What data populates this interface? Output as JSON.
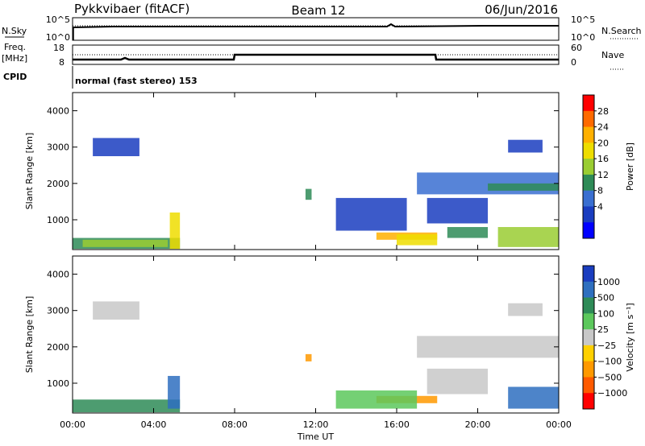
{
  "header": {
    "station": "Pykkvibaer (fitACF)",
    "beam": "Beam 12",
    "date": "06/Jun/2016"
  },
  "status_panels": {
    "nsky_label": "N.Sky",
    "nsearch_label": "N.Search",
    "freq_label_1": "Freq.",
    "freq_label_2": "[MHz]",
    "nave_label": "Nave",
    "cpid_label": "CPID",
    "cpid_text": "normal (fast stereo) 153",
    "noise_left_ticks": [
      "10^5",
      "10^0"
    ],
    "noise_right_ticks": [
      "10^5",
      "10^0"
    ],
    "freq_left_ticks": [
      "18",
      "8"
    ],
    "nave_right_ticks": [
      "60",
      "0"
    ]
  },
  "chart_data": [
    {
      "type": "heatmap",
      "name": "power",
      "ylabel": "Slant Range [km]",
      "xlabel": "",
      "y_ticks": [
        "4000",
        "3000",
        "2000",
        "1000"
      ],
      "ylim": [
        180,
        4500
      ],
      "colorbar_label": "Power [dB]",
      "colorbar_ticks": [
        "28",
        "24",
        "20",
        "16",
        "12",
        "8",
        "4"
      ],
      "colorbar_colors": [
        "#ff0000",
        "#ff6a00",
        "#ffb000",
        "#eedd00",
        "#9acd32",
        "#2e8b57",
        "#3a6fd1",
        "#1a3dbf",
        "#0000ff"
      ],
      "x_range_hours": [
        0,
        24
      ],
      "echo_regions": [
        {
          "t0": 0.0,
          "t1": 5.3,
          "r0": 200,
          "r1": 500,
          "level": 3
        },
        {
          "t0": 0.5,
          "t1": 4.7,
          "r0": 250,
          "r1": 450,
          "level": 4
        },
        {
          "t0": 4.8,
          "t1": 5.3,
          "r0": 200,
          "r1": 1200,
          "level": 5
        },
        {
          "t0": 1.0,
          "t1": 3.3,
          "r0": 2750,
          "r1": 3250,
          "level": 1
        },
        {
          "t0": 11.5,
          "t1": 11.8,
          "r0": 1550,
          "r1": 1850,
          "level": 3
        },
        {
          "t0": 13.0,
          "t1": 16.5,
          "r0": 700,
          "r1": 1600,
          "level": 1
        },
        {
          "t0": 15.0,
          "t1": 18.0,
          "r0": 450,
          "r1": 650,
          "level": 6
        },
        {
          "t0": 16.0,
          "t1": 18.0,
          "r0": 300,
          "r1": 600,
          "level": 5
        },
        {
          "t0": 17.5,
          "t1": 20.5,
          "r0": 900,
          "r1": 1600,
          "level": 1
        },
        {
          "t0": 18.5,
          "t1": 20.5,
          "r0": 500,
          "r1": 800,
          "level": 3
        },
        {
          "t0": 17.0,
          "t1": 24.0,
          "r0": 1700,
          "r1": 2300,
          "level": 2
        },
        {
          "t0": 20.5,
          "t1": 24.0,
          "r0": 1800,
          "r1": 2000,
          "level": 3
        },
        {
          "t0": 21.5,
          "t1": 23.2,
          "r0": 2850,
          "r1": 3200,
          "level": 1
        },
        {
          "t0": 21.0,
          "t1": 24.0,
          "r0": 250,
          "r1": 800,
          "level": 4
        }
      ]
    },
    {
      "type": "heatmap",
      "name": "velocity",
      "ylabel": "Slant Range [km]",
      "xlabel": "Time UT",
      "x_ticks": [
        "00:00",
        "04:00",
        "08:00",
        "12:00",
        "16:00",
        "20:00",
        "00:00"
      ],
      "y_ticks": [
        "4000",
        "3000",
        "2000",
        "1000"
      ],
      "ylim": [
        180,
        4500
      ],
      "colorbar_label": "Velocity [m s⁻¹]",
      "colorbar_ticks": [
        "1000",
        "500",
        "100",
        "25",
        "−25",
        "−100",
        "−500",
        "−1000"
      ],
      "colorbar_colors": [
        "#1a3dbf",
        "#2e6fbf",
        "#2e8b57",
        "#5cc85c",
        "#c8c8c8",
        "#ffd000",
        "#ff9900",
        "#ff5a00",
        "#ff0000"
      ],
      "x_range_hours": [
        0,
        24
      ],
      "echo_regions": [
        {
          "t0": 0.0,
          "t1": 5.3,
          "r0": 200,
          "r1": 550,
          "level": 6
        },
        {
          "t0": 4.7,
          "t1": 5.3,
          "r0": 300,
          "r1": 1200,
          "level": 7
        },
        {
          "t0": 1.0,
          "t1": 3.3,
          "r0": 2750,
          "r1": 3250,
          "level": 4
        },
        {
          "t0": 11.5,
          "t1": 11.8,
          "r0": 1600,
          "r1": 1800,
          "level": 2
        },
        {
          "t0": 15.0,
          "t1": 18.0,
          "r0": 450,
          "r1": 650,
          "level": 2
        },
        {
          "t0": 13.0,
          "t1": 17.0,
          "r0": 300,
          "r1": 800,
          "level": 5
        },
        {
          "t0": 17.0,
          "t1": 24.0,
          "r0": 1700,
          "r1": 2300,
          "level": 4
        },
        {
          "t0": 17.5,
          "t1": 20.5,
          "r0": 700,
          "r1": 1400,
          "level": 4
        },
        {
          "t0": 21.5,
          "t1": 23.2,
          "r0": 2850,
          "r1": 3200,
          "level": 4
        },
        {
          "t0": 21.5,
          "t1": 24.0,
          "r0": 300,
          "r1": 900,
          "level": 7
        }
      ]
    }
  ]
}
